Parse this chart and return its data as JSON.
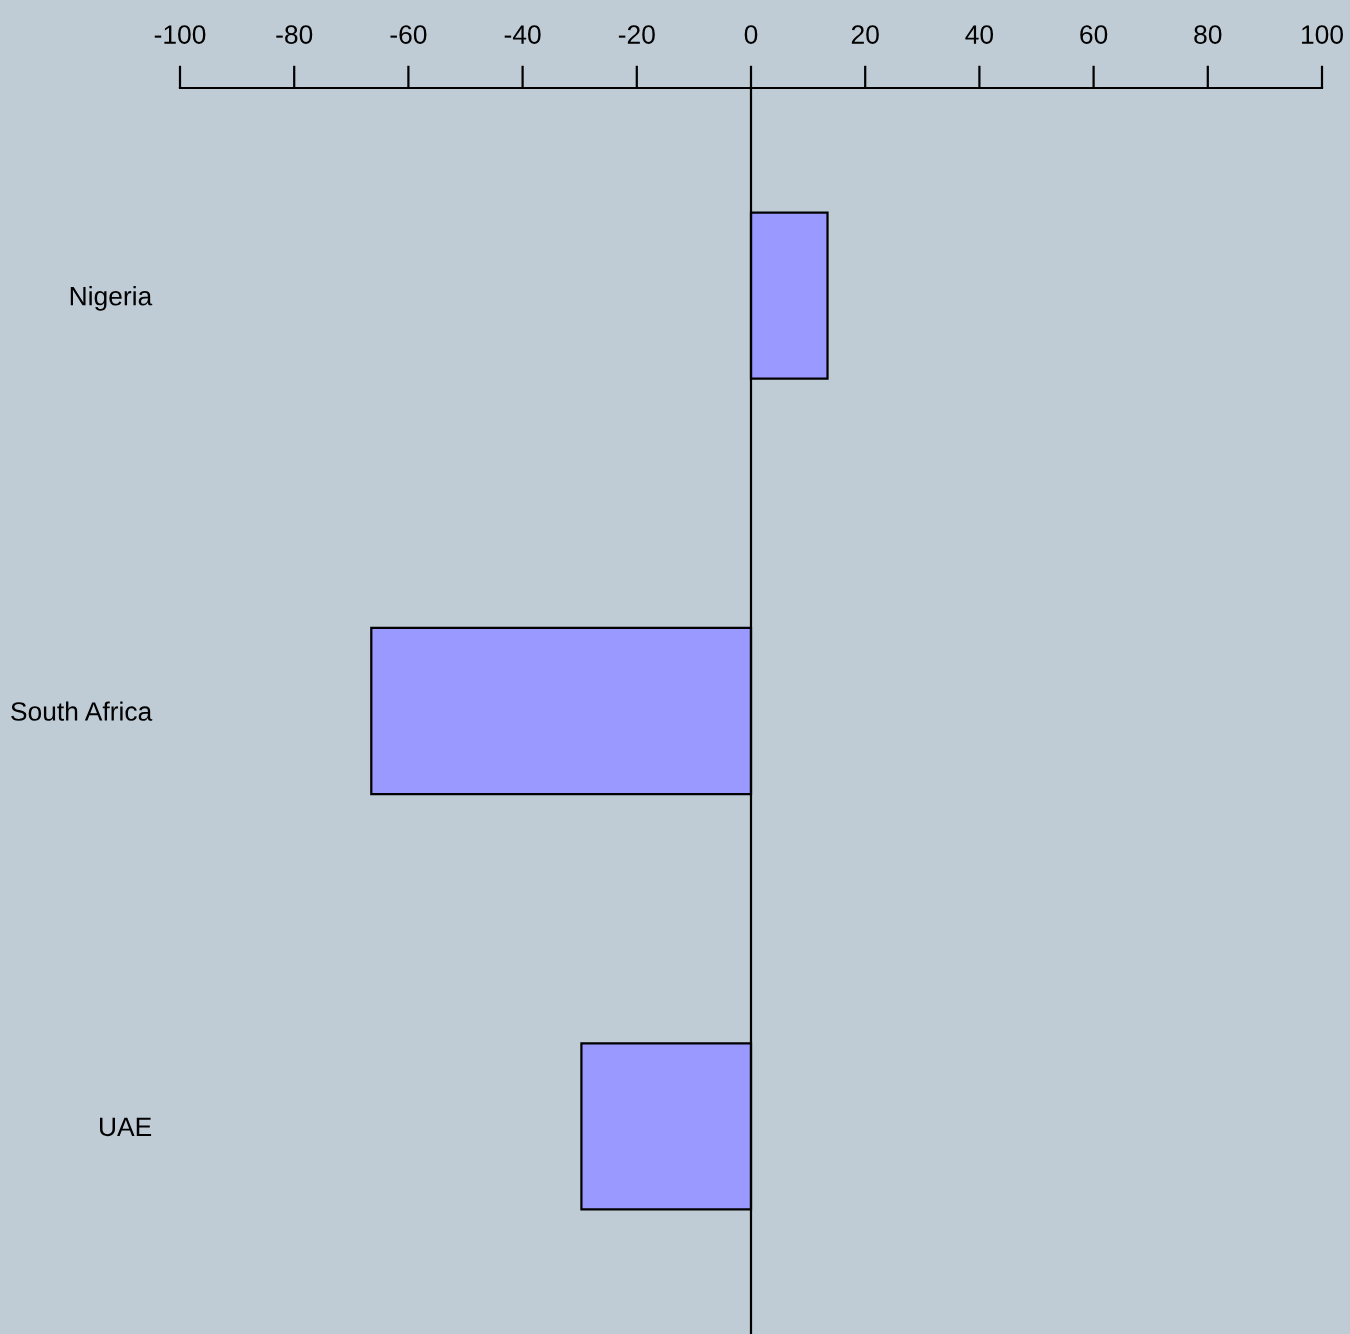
{
  "chart_data": {
    "type": "bar",
    "orientation": "horizontal",
    "categories": [
      "Nigeria",
      "South Africa",
      "UAE"
    ],
    "values": [
      13.4,
      -66.5,
      -29.7
    ],
    "color": "#9999ff",
    "xlim": [
      -100,
      100
    ],
    "xticks": [
      -100,
      -80,
      -60,
      -40,
      -20,
      0,
      20,
      40,
      60,
      80,
      100
    ],
    "legend": false
  }
}
